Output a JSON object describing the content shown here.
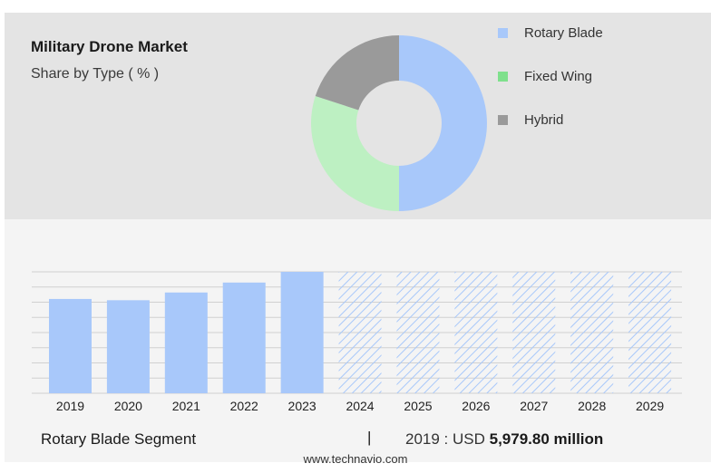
{
  "header": {
    "title": "Military Drone Market",
    "subtitle": "Share by Type ( % )"
  },
  "colors": {
    "rotary": "#a8c8fa",
    "fixed": "#bdf0c2",
    "hybrid": "#9a9a9a",
    "legend_fixed_swatch": "#7fe08c",
    "forecast_hatch": "#a8c8fa",
    "grid": "#d0d0d0"
  },
  "chart_data": [
    {
      "type": "pie",
      "variant": "donut",
      "labels": [
        "Rotary Blade",
        "Fixed Wing",
        "Hybrid"
      ],
      "values": [
        50,
        30,
        20
      ],
      "legend_position": "right"
    },
    {
      "type": "bar",
      "categories": [
        "2019",
        "2020",
        "2021",
        "2022",
        "2023",
        "2024",
        "2025",
        "2026",
        "2027",
        "2028",
        "2029"
      ],
      "values": [
        5979.8,
        5900,
        6390,
        7020,
        7700,
        7700,
        7700,
        7700,
        7700,
        7700,
        7700
      ],
      "forecast_from": "2024",
      "forecast_style": "hatched",
      "grid": true
    }
  ],
  "legend": {
    "items": [
      {
        "label": "Rotary Blade"
      },
      {
        "label": "Fixed Wing"
      },
      {
        "label": "Hybrid"
      }
    ]
  },
  "footer": {
    "segment_label": "Rotary Blade Segment",
    "separator": "|",
    "value_prefix": "2019 : USD",
    "value": "5,979.80 million",
    "watermark": "www.technavio.com"
  }
}
